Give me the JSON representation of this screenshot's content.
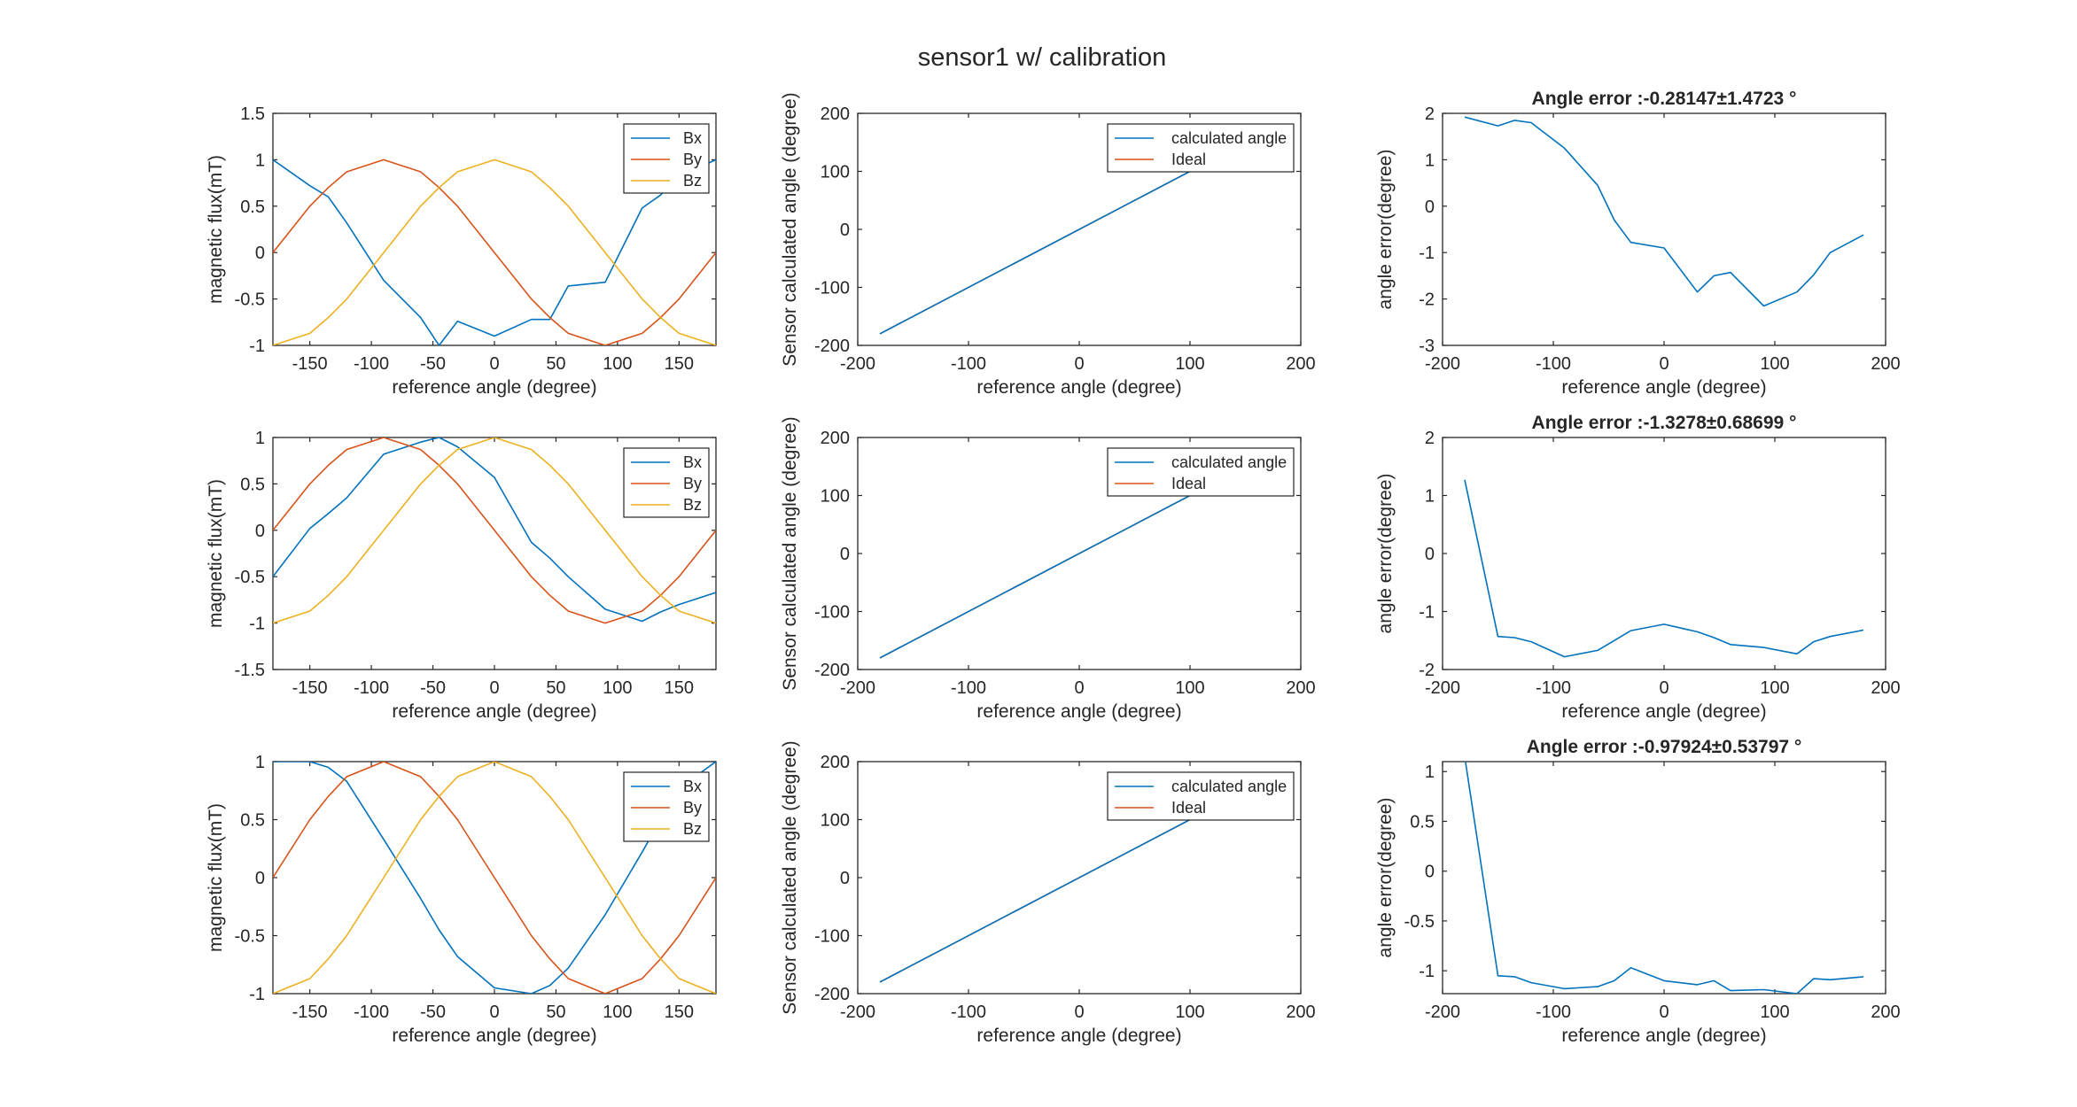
{
  "figure": {
    "title": "sensor1 w/ calibration"
  },
  "colors": {
    "bx": "#0072BD",
    "by": "#D95319",
    "bz": "#EDB120",
    "calc": "#0072BD",
    "ideal": "#D95319",
    "err": "#0072BD",
    "axis": "#262626",
    "legend_border": "#262626"
  },
  "chart_data": [
    {
      "type": "line",
      "title": "",
      "xlabel": "reference angle (degree)",
      "ylabel": "magnetic flux(mT)",
      "xlim": [
        -180,
        180
      ],
      "ylim": [
        -1,
        1.5
      ],
      "xticks": [
        -150,
        -100,
        -50,
        0,
        50,
        100,
        150
      ],
      "yticks": [
        -1,
        -0.5,
        0,
        0.5,
        1,
        1.5
      ],
      "ytick_labels": [
        "-1",
        "-0.5",
        "0",
        "0.5",
        "1",
        "1.5"
      ],
      "legend": "top-right",
      "x": [
        -180,
        -150,
        -135,
        -120,
        -90,
        -60,
        -45,
        -30,
        0,
        30,
        45,
        60,
        90,
        120,
        135,
        150,
        180
      ],
      "series": [
        {
          "name": "Bx",
          "color_key": "bx",
          "values": [
            1.0,
            0.72,
            0.6,
            0.32,
            -0.3,
            -0.7,
            -1.0,
            -0.74,
            -0.9,
            -0.72,
            -0.72,
            -0.36,
            -0.32,
            0.48,
            0.62,
            0.82,
            1.0
          ]
        },
        {
          "name": "By",
          "color_key": "by",
          "values": [
            0.0,
            0.5,
            0.7,
            0.87,
            1.0,
            0.87,
            0.7,
            0.5,
            0.0,
            -0.5,
            -0.7,
            -0.87,
            -1.0,
            -0.87,
            -0.7,
            -0.5,
            0.0
          ]
        },
        {
          "name": "Bz",
          "color_key": "bz",
          "values": [
            -1.0,
            -0.87,
            -0.7,
            -0.5,
            0.0,
            0.5,
            0.7,
            0.87,
            1.0,
            0.87,
            0.7,
            0.5,
            0.0,
            -0.5,
            -0.7,
            -0.87,
            -1.0
          ]
        }
      ]
    },
    {
      "type": "line",
      "title": "",
      "xlabel": "reference angle (degree)",
      "ylabel": "Sensor calculated angle (degree)",
      "xlim": [
        -200,
        200
      ],
      "ylim": [
        -200,
        200
      ],
      "xticks": [
        -200,
        -100,
        0,
        100,
        200
      ],
      "yticks": [
        -200,
        -100,
        0,
        100,
        200
      ],
      "ytick_labels": [
        "-200",
        "-100",
        "0",
        "100",
        "200"
      ],
      "legend": "top-right",
      "x": [
        -180,
        180
      ],
      "series": [
        {
          "name": "calculated angle",
          "color_key": "calc",
          "values": [
            -180,
            180
          ]
        },
        {
          "name": "Ideal",
          "color_key": "ideal",
          "values": [
            -180,
            180
          ]
        }
      ]
    },
    {
      "type": "line",
      "title": "Angle error :-0.28147±1.4723 °",
      "xlabel": "reference angle (degree)",
      "ylabel": "angle error(degree)",
      "xlim": [
        -200,
        200
      ],
      "ylim": [
        -3,
        2
      ],
      "xticks": [
        -200,
        -100,
        0,
        100,
        200
      ],
      "yticks": [
        -3,
        -2,
        -1,
        0,
        1,
        2
      ],
      "ytick_labels": [
        "-3",
        "-2",
        "-1",
        "0",
        "1",
        "2"
      ],
      "x": [
        -180,
        -150,
        -135,
        -120,
        -90,
        -60,
        -45,
        -30,
        0,
        30,
        45,
        60,
        90,
        120,
        135,
        150,
        180
      ],
      "series": [
        {
          "color_key": "err",
          "values": [
            1.92,
            1.73,
            1.85,
            1.8,
            1.25,
            0.45,
            -0.3,
            -0.78,
            -0.9,
            -1.85,
            -1.5,
            -1.43,
            -2.15,
            -1.85,
            -1.48,
            -1.0,
            -0.62
          ]
        }
      ]
    },
    {
      "type": "line",
      "title": "",
      "xlabel": "reference angle (degree)",
      "ylabel": "magnetic flux(mT)",
      "xlim": [
        -180,
        180
      ],
      "ylim": [
        -1.5,
        1
      ],
      "xticks": [
        -150,
        -100,
        -50,
        0,
        50,
        100,
        150
      ],
      "yticks": [
        -1.5,
        -1,
        -0.5,
        0,
        0.5,
        1
      ],
      "ytick_labels": [
        "-1.5",
        "-1",
        "-0.5",
        "0",
        "0.5",
        "1"
      ],
      "legend": "top-right",
      "x": [
        -180,
        -150,
        -135,
        -120,
        -90,
        -60,
        -45,
        -30,
        0,
        30,
        45,
        60,
        90,
        120,
        135,
        150,
        180
      ],
      "series": [
        {
          "name": "Bx",
          "color_key": "bx",
          "values": [
            -0.5,
            0.02,
            0.18,
            0.35,
            0.82,
            0.95,
            1.0,
            0.9,
            0.57,
            -0.13,
            -0.3,
            -0.5,
            -0.85,
            -0.98,
            -0.88,
            -0.8,
            -0.67
          ]
        },
        {
          "name": "By",
          "color_key": "by",
          "values": [
            0.0,
            0.5,
            0.7,
            0.87,
            1.0,
            0.87,
            0.7,
            0.5,
            0.0,
            -0.5,
            -0.7,
            -0.87,
            -1.0,
            -0.87,
            -0.7,
            -0.5,
            0.0
          ]
        },
        {
          "name": "Bz",
          "color_key": "bz",
          "values": [
            -1.0,
            -0.87,
            -0.7,
            -0.5,
            0.0,
            0.5,
            0.7,
            0.87,
            1.0,
            0.87,
            0.7,
            0.5,
            0.0,
            -0.5,
            -0.7,
            -0.87,
            -1.0
          ]
        }
      ]
    },
    {
      "type": "line",
      "title": "",
      "xlabel": "reference angle (degree)",
      "ylabel": "Sensor calculated angle (degree)",
      "xlim": [
        -200,
        200
      ],
      "ylim": [
        -200,
        200
      ],
      "xticks": [
        -200,
        -100,
        0,
        100,
        200
      ],
      "yticks": [
        -200,
        -100,
        0,
        100,
        200
      ],
      "ytick_labels": [
        "-200",
        "-100",
        "0",
        "100",
        "200"
      ],
      "legend": "top-right",
      "x": [
        -180,
        180
      ],
      "series": [
        {
          "name": "calculated angle",
          "color_key": "calc",
          "values": [
            -180,
            180
          ]
        },
        {
          "name": "Ideal",
          "color_key": "ideal",
          "values": [
            -180,
            180
          ]
        }
      ]
    },
    {
      "type": "line",
      "title": "Angle error :-1.3278±0.68699 °",
      "xlabel": "reference angle (degree)",
      "ylabel": "angle error(degree)",
      "xlim": [
        -200,
        200
      ],
      "ylim": [
        -2,
        2
      ],
      "xticks": [
        -200,
        -100,
        0,
        100,
        200
      ],
      "yticks": [
        -2,
        -1,
        0,
        1,
        2
      ],
      "ytick_labels": [
        "-2",
        "-1",
        "0",
        "1",
        "2"
      ],
      "x": [
        -180,
        -150,
        -135,
        -120,
        -90,
        -60,
        -45,
        -30,
        0,
        30,
        45,
        60,
        90,
        120,
        135,
        150,
        180
      ],
      "series": [
        {
          "color_key": "err",
          "values": [
            1.27,
            -1.43,
            -1.45,
            -1.52,
            -1.78,
            -1.67,
            -1.5,
            -1.33,
            -1.22,
            -1.35,
            -1.45,
            -1.57,
            -1.62,
            -1.73,
            -1.52,
            -1.43,
            -1.32
          ]
        }
      ]
    },
    {
      "type": "line",
      "title": "",
      "xlabel": "reference angle (degree)",
      "ylabel": "magnetic flux(mT)",
      "xlim": [
        -180,
        180
      ],
      "ylim": [
        -1,
        1
      ],
      "xticks": [
        -150,
        -100,
        -50,
        0,
        50,
        100,
        150
      ],
      "yticks": [
        -1,
        -0.5,
        0,
        0.5,
        1
      ],
      "ytick_labels": [
        "-1",
        "-0.5",
        "0",
        "0.5",
        "1"
      ],
      "legend": "top-right",
      "x": [
        -180,
        -150,
        -135,
        -120,
        -90,
        -60,
        -45,
        -30,
        0,
        30,
        45,
        60,
        90,
        120,
        135,
        150,
        180
      ],
      "series": [
        {
          "name": "Bx",
          "color_key": "bx",
          "values": [
            1.0,
            1.0,
            0.95,
            0.83,
            0.33,
            -0.18,
            -0.45,
            -0.68,
            -0.95,
            -1.0,
            -0.93,
            -0.78,
            -0.32,
            0.22,
            0.5,
            0.77,
            1.0
          ]
        },
        {
          "name": "By",
          "color_key": "by",
          "values": [
            0.0,
            0.5,
            0.7,
            0.87,
            1.0,
            0.87,
            0.7,
            0.5,
            0.0,
            -0.5,
            -0.7,
            -0.87,
            -1.0,
            -0.87,
            -0.7,
            -0.5,
            0.0
          ]
        },
        {
          "name": "Bz",
          "color_key": "bz",
          "values": [
            -1.0,
            -0.87,
            -0.7,
            -0.5,
            0.0,
            0.5,
            0.7,
            0.87,
            1.0,
            0.87,
            0.7,
            0.5,
            0.0,
            -0.5,
            -0.7,
            -0.87,
            -1.0
          ]
        }
      ]
    },
    {
      "type": "line",
      "title": "",
      "xlabel": "reference angle (degree)",
      "ylabel": "Sensor calculated angle (degree)",
      "xlim": [
        -200,
        200
      ],
      "ylim": [
        -200,
        200
      ],
      "xticks": [
        -200,
        -100,
        0,
        100,
        200
      ],
      "yticks": [
        -200,
        -100,
        0,
        100,
        200
      ],
      "ytick_labels": [
        "-200",
        "-100",
        "0",
        "100",
        "200"
      ],
      "legend": "top-right",
      "x": [
        -180,
        180
      ],
      "series": [
        {
          "name": "calculated angle",
          "color_key": "calc",
          "values": [
            -180,
            180
          ]
        },
        {
          "name": "Ideal",
          "color_key": "ideal",
          "values": [
            -180,
            180
          ]
        }
      ]
    },
    {
      "type": "line",
      "title": "Angle error :-0.97924±0.53797 °",
      "xlabel": "reference angle (degree)",
      "ylabel": "angle error(degree)",
      "xlim": [
        -200,
        200
      ],
      "ylim": [
        -1.23,
        1.1
      ],
      "xticks": [
        -200,
        -100,
        0,
        100,
        200
      ],
      "yticks": [
        -1,
        -0.5,
        0,
        0.5,
        1
      ],
      "ytick_labels": [
        "-1",
        "-0.5",
        "0",
        "0.5",
        "1"
      ],
      "x": [
        -180,
        -150,
        -135,
        -120,
        -90,
        -60,
        -45,
        -30,
        0,
        30,
        45,
        60,
        90,
        120,
        135,
        150,
        180
      ],
      "series": [
        {
          "color_key": "err",
          "values": [
            1.15,
            -1.05,
            -1.06,
            -1.12,
            -1.18,
            -1.16,
            -1.1,
            -0.97,
            -1.1,
            -1.14,
            -1.1,
            -1.2,
            -1.19,
            -1.23,
            -1.08,
            -1.09,
            -1.06
          ]
        }
      ]
    }
  ]
}
